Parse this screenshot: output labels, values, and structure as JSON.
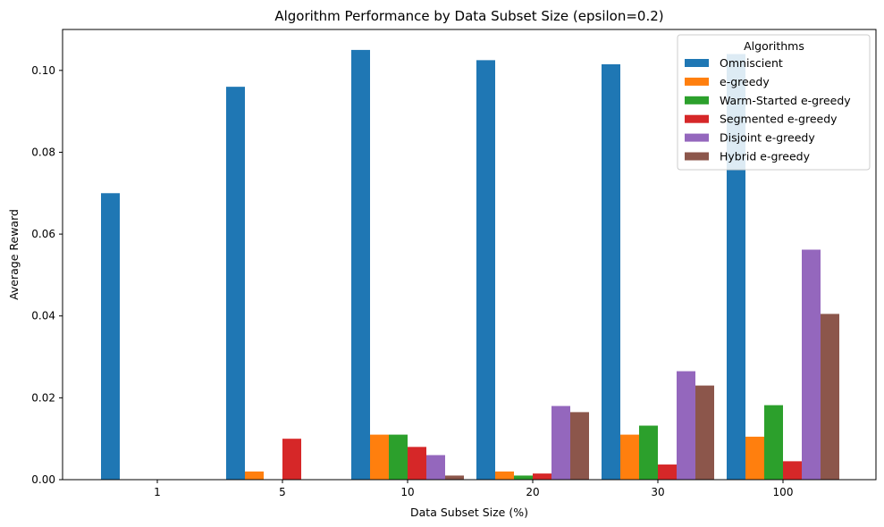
{
  "chart_data": {
    "type": "bar",
    "title": "Algorithm Performance by Data Subset Size (epsilon=0.2)",
    "xlabel": "Data Subset Size (%)",
    "ylabel": "Average Reward",
    "categories": [
      "1",
      "5",
      "10",
      "20",
      "30",
      "100"
    ],
    "ylim": [
      0,
      0.11
    ],
    "yticks": [
      0.0,
      0.02,
      0.04,
      0.06,
      0.08,
      0.1
    ],
    "ytick_labels": [
      "0.00",
      "0.02",
      "0.04",
      "0.06",
      "0.08",
      "0.10"
    ],
    "grid": false,
    "legend": {
      "title": "Algorithms",
      "placement": "top-right"
    },
    "series": [
      {
        "name": "Omniscient",
        "color": "#1f77b4",
        "values": [
          0.07,
          0.096,
          0.105,
          0.1025,
          0.1015,
          0.104
        ]
      },
      {
        "name": "e-greedy",
        "color": "#ff7f0e",
        "values": [
          0.0,
          0.002,
          0.011,
          0.002,
          0.011,
          0.0105
        ]
      },
      {
        "name": "Warm-Started e-greedy",
        "color": "#2ca02c",
        "values": [
          0.0,
          0.0,
          0.011,
          0.001,
          0.0132,
          0.0182
        ]
      },
      {
        "name": "Segmented e-greedy",
        "color": "#d62728",
        "values": [
          0.0,
          0.01,
          0.008,
          0.0015,
          0.0037,
          0.0045
        ]
      },
      {
        "name": "Disjoint e-greedy",
        "color": "#9467bd",
        "values": [
          0.0,
          0.0,
          0.006,
          0.018,
          0.0265,
          0.0562
        ]
      },
      {
        "name": "Hybrid e-greedy",
        "color": "#8c564b",
        "values": [
          0.0,
          0.0,
          0.001,
          0.0165,
          0.023,
          0.0405
        ]
      }
    ]
  }
}
